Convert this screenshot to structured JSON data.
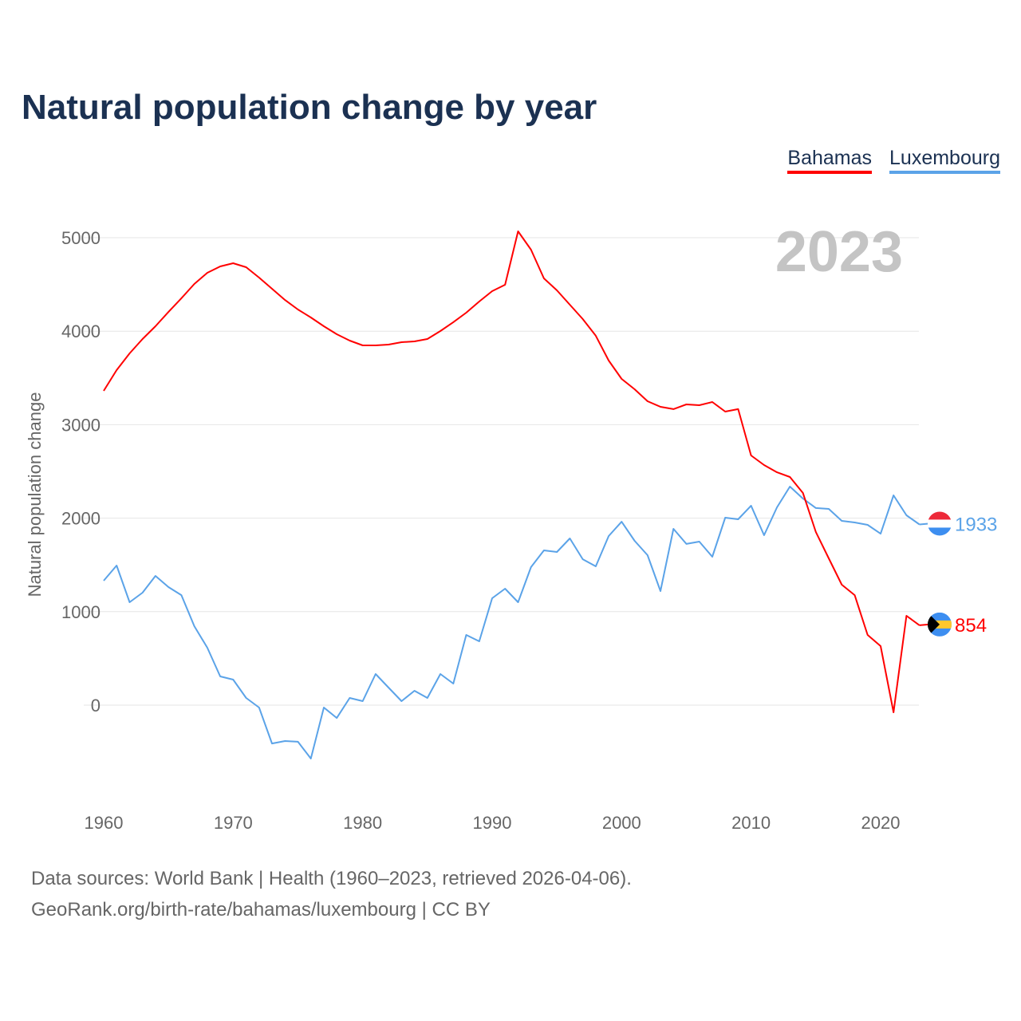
{
  "chart_data": {
    "type": "line",
    "title": "Natural population change by year",
    "xlabel": "",
    "ylabel": "Natural population change",
    "year_label": "2023",
    "xlim": [
      1960,
      2023
    ],
    "ylim": [
      -1000,
      5000
    ],
    "x_ticks": [
      1960,
      1970,
      1980,
      1990,
      2000,
      2010,
      2020
    ],
    "y_ticks": [
      0,
      1000,
      2000,
      3000,
      4000,
      5000
    ],
    "grid": true,
    "legend_position": "top-right",
    "x": [
      1960,
      1961,
      1962,
      1963,
      1964,
      1965,
      1966,
      1967,
      1968,
      1969,
      1970,
      1971,
      1972,
      1973,
      1974,
      1975,
      1976,
      1977,
      1978,
      1979,
      1980,
      1981,
      1982,
      1983,
      1984,
      1985,
      1986,
      1987,
      1988,
      1989,
      1990,
      1991,
      1992,
      1993,
      1994,
      1995,
      1996,
      1997,
      1998,
      1999,
      2000,
      2001,
      2002,
      2003,
      2004,
      2005,
      2006,
      2007,
      2008,
      2009,
      2010,
      2011,
      2012,
      2013,
      2014,
      2015,
      2016,
      2017,
      2018,
      2019,
      2020,
      2021,
      2022,
      2023
    ],
    "series": [
      {
        "name": "Bahamas",
        "color": "#ff0000",
        "end_label": "854",
        "values": [
          3362,
          3584,
          3763,
          3916,
          4053,
          4206,
          4352,
          4505,
          4625,
          4693,
          4727,
          4684,
          4573,
          4454,
          4334,
          4232,
          4147,
          4053,
          3968,
          3899,
          3848,
          3848,
          3857,
          3882,
          3891,
          3916,
          4002,
          4096,
          4198,
          4317,
          4428,
          4497,
          5068,
          4872,
          4565,
          4437,
          4283,
          4130,
          3951,
          3686,
          3490,
          3379,
          3251,
          3191,
          3166,
          3217,
          3208,
          3242,
          3140,
          3166,
          2671,
          2568,
          2491,
          2440,
          2270,
          1852,
          1570,
          1288,
          1177,
          751,
          631,
          -77,
          956,
          854
        ]
      },
      {
        "name": "Luxembourg",
        "color": "#5ba3e8",
        "end_label": "1933",
        "values": [
          1331,
          1493,
          1101,
          1203,
          1382,
          1263,
          1177,
          845,
          614,
          307,
          273,
          77,
          -26,
          -410,
          -384,
          -392,
          -572,
          -26,
          -137,
          77,
          43,
          333,
          188,
          43,
          154,
          77,
          333,
          230,
          751,
          683,
          1143,
          1246,
          1101,
          1476,
          1655,
          1638,
          1783,
          1561,
          1485,
          1809,
          1962,
          1758,
          1604,
          1220,
          1886,
          1724,
          1749,
          1587,
          2005,
          1988,
          2133,
          1817,
          2116,
          2338,
          2210,
          2108,
          2099,
          1971,
          1954,
          1928,
          1834,
          2244,
          2031,
          1933
        ]
      }
    ]
  },
  "footer": {
    "line1": "Data sources: World Bank | Health (1960–2023, retrieved 2026-04-06).",
    "line2": "GeoRank.org/birth-rate/bahamas/luxembourg | CC BY"
  }
}
